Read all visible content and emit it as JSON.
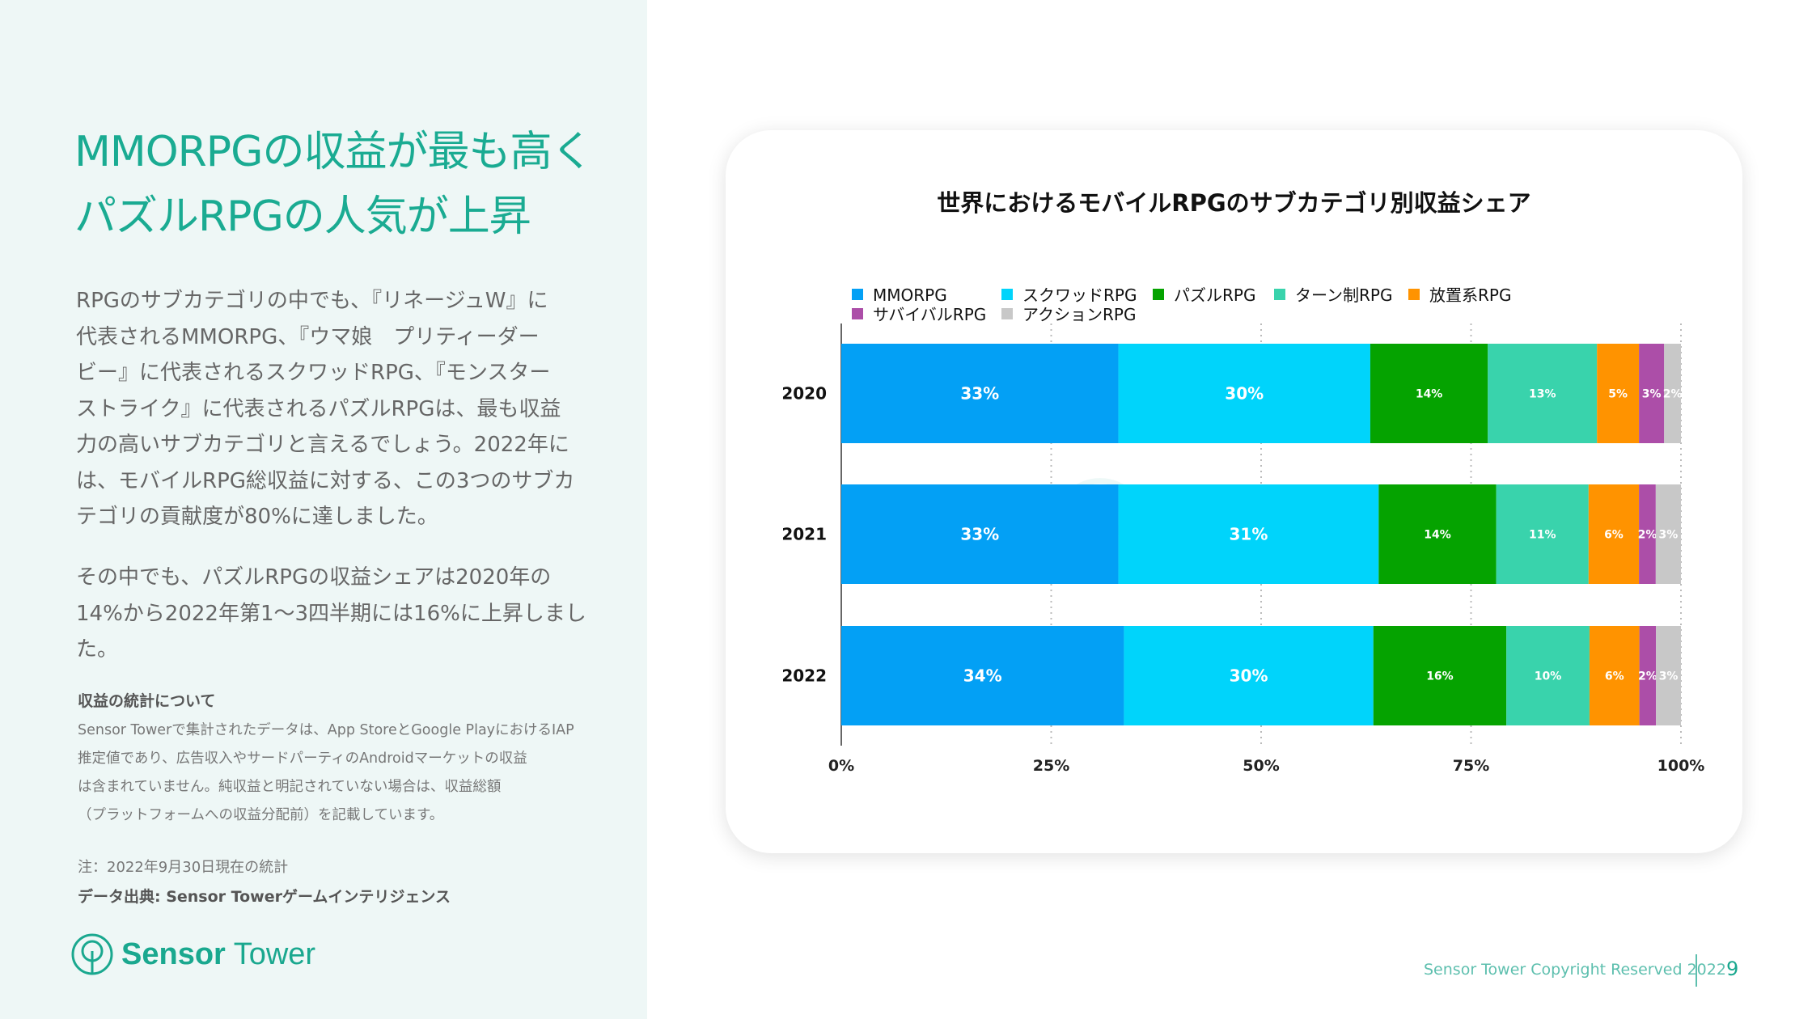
{
  "left": {
    "title_lines": [
      "MMORPGの収益が最も高く",
      "パズルRPGの人気が上昇"
    ],
    "paragraph1": [
      "RPGのサブカテゴリの中でも、『リネージュW』に",
      "代表されるMMORPG、『ウマ娘　プリティーダー",
      "ビー』に代表されるスクワッドRPG、『モンスター",
      "ストライク』に代表されるパズルRPGは、最も収益",
      "力の高いサブカテゴリと言えるでしょう。2022年に",
      "は、モバイルRPG総収益に対する、この3つのサブカ",
      "テゴリの貢献度が80%に達しました。"
    ],
    "paragraph2": [
      "その中でも、パズルRPGの収益シェアは2020年の",
      "14%から2022年第1～3四半期には16%に上昇しまし",
      "た。"
    ],
    "notes_heading": "収益の統計について",
    "notes": [
      "Sensor Towerで集計されたデータは、App StoreとGoogle PlayにおけるIAP",
      "推定値であり、広告収入やサードパーティのAndroidマーケットの収益",
      "は含まれていません。純収益と明記されていない場合は、収益総額",
      "（プラットフォームへの収益分配前）を記載しています。"
    ],
    "note": "注：2022年9月30日現在の統計",
    "source": "データ出典: Sensor Towerゲームインテリジェンス",
    "logo": {
      "bold": "Sensor",
      "light": "Tower"
    }
  },
  "watermark": "Sensor Tower",
  "footer": {
    "copyright": "Sensor Tower Copyright Reserved 2022",
    "page": "9"
  },
  "chart_data": {
    "type": "bar",
    "orientation": "horizontal-stacked-100",
    "title": "世界におけるモバイルRPGのサブカテゴリ別収益シェア",
    "categories": [
      "2020",
      "2021",
      "2022"
    ],
    "series": [
      {
        "name": "MMORPG",
        "color": "#03a0f5",
        "values": [
          33,
          33,
          34
        ]
      },
      {
        "name": "スクワッドRPG",
        "color": "#00d4fb",
        "values": [
          30,
          31,
          30
        ]
      },
      {
        "name": "パズルRPG",
        "color": "#05a300",
        "values": [
          14,
          14,
          16
        ]
      },
      {
        "name": "ターン制RPG",
        "color": "#39d3ac",
        "values": [
          13,
          11,
          10
        ]
      },
      {
        "name": "放置系RPG",
        "color": "#ff9300",
        "values": [
          5,
          6,
          6
        ]
      },
      {
        "name": "サバイバルRPG",
        "color": "#ac4ea8",
        "values": [
          3,
          2,
          2
        ]
      },
      {
        "name": "アクションRPG",
        "color": "#c8c8c8",
        "values": [
          2,
          3,
          3
        ]
      }
    ],
    "xticks": [
      "0%",
      "25%",
      "50%",
      "75%",
      "100%"
    ],
    "xlim": [
      0,
      100
    ],
    "grid": "vertical dotted",
    "legend": "top-left"
  }
}
